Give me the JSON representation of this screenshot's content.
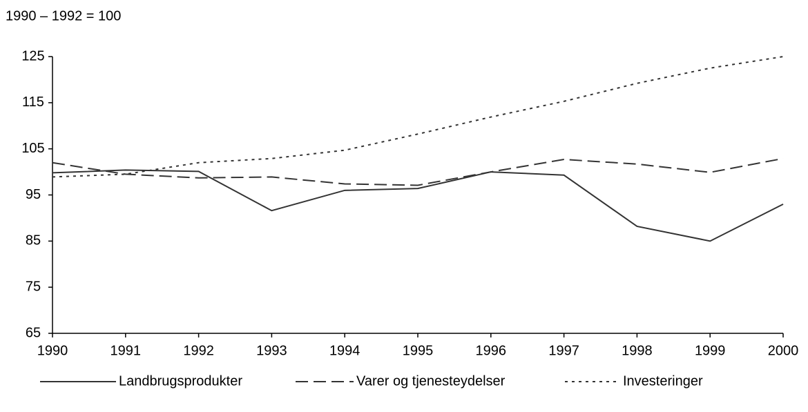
{
  "chart_data": {
    "type": "line",
    "y_label": "1990 – 1992 = 100",
    "x": [
      1990,
      1991,
      1992,
      1993,
      1994,
      1995,
      1996,
      1997,
      1998,
      1999,
      2000
    ],
    "xlim": [
      1990,
      2000
    ],
    "xticks": [
      1990,
      1991,
      1992,
      1993,
      1994,
      1995,
      1996,
      1997,
      1998,
      1999,
      2000
    ],
    "ylim": [
      65,
      125
    ],
    "yticks": [
      65,
      75,
      85,
      95,
      105,
      115,
      125
    ],
    "grid": false,
    "legend": "bottom",
    "series": [
      {
        "name": "Landbrugsprodukter",
        "color": "#333333",
        "dash": "solid",
        "values": [
          99.8,
          100.4,
          100.1,
          91.6,
          96.0,
          96.4,
          100.0,
          99.3,
          88.2,
          85.0,
          93.0
        ]
      },
      {
        "name": "Varer og tjenesteydelser",
        "color": "#333333",
        "dash": "dashed",
        "values": [
          102.0,
          99.5,
          98.7,
          98.9,
          97.4,
          97.1,
          100.0,
          102.7,
          101.7,
          99.9,
          102.9
        ]
      },
      {
        "name": "Investeringer",
        "color": "#333333",
        "dash": "dotted",
        "values": [
          98.9,
          99.5,
          102.0,
          102.9,
          104.7,
          108.2,
          111.9,
          115.3,
          119.2,
          122.5,
          125.0
        ]
      }
    ]
  }
}
